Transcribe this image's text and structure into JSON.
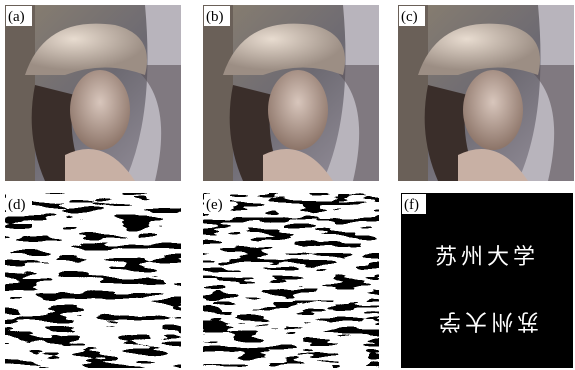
{
  "panels": [
    {
      "label": "(a)"
    },
    {
      "label": "(b)"
    },
    {
      "label": "(c)"
    },
    {
      "label": "(d)"
    },
    {
      "label": "(e)"
    },
    {
      "label": "(f)",
      "texts": [
        "苏州大学",
        "苏州大学"
      ]
    }
  ]
}
